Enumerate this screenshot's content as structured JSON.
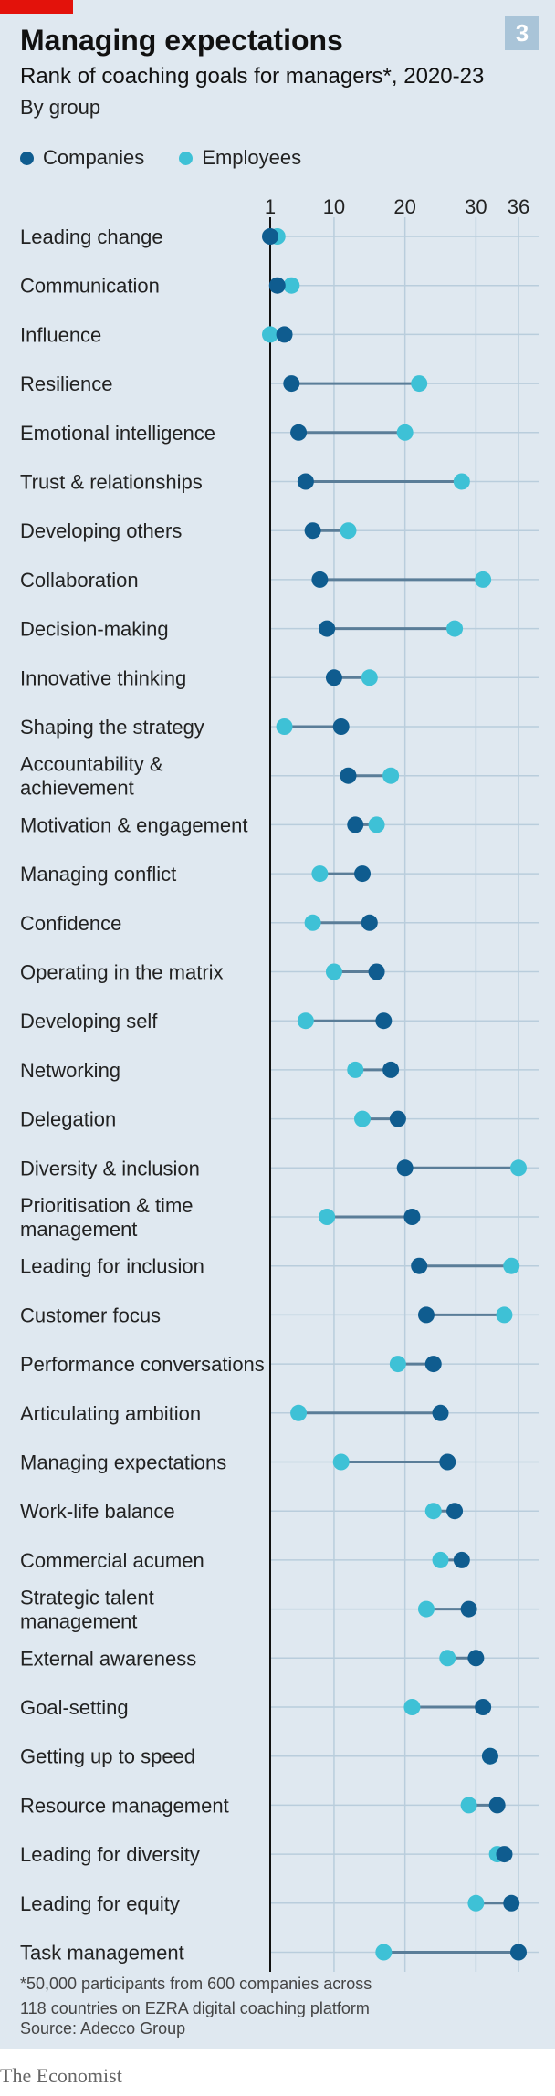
{
  "header": {
    "badge": "3",
    "title": "Managing expectations",
    "subtitle": "Rank of coaching goals for managers*, 2020-23",
    "group_label": "By group"
  },
  "legend": {
    "companies": "Companies",
    "employees": "Employees"
  },
  "colors": {
    "companies": "#0f5c8f",
    "employees": "#3ec1d6",
    "connector": "#5a7d98",
    "grid": "#b9cddc",
    "background": "#dfe8f0"
  },
  "chart_data": {
    "type": "dumbbell",
    "x_axis": {
      "ticks": [
        1,
        10,
        20,
        30,
        36
      ],
      "range": [
        1,
        36
      ]
    },
    "categories": [
      "Leading change",
      "Communication",
      "Influence",
      "Resilience",
      "Emotional intelligence",
      "Trust & relationships",
      "Developing others",
      "Collaboration",
      "Decision-making",
      "Innovative thinking",
      "Shaping the strategy",
      "Accountability & achievement",
      "Motivation & engagement",
      "Managing conflict",
      "Confidence",
      "Operating in the matrix",
      "Developing self",
      "Networking",
      "Delegation",
      "Diversity & inclusion",
      "Prioritisation & time management",
      "Leading for inclusion",
      "Customer focus",
      "Performance conversations",
      "Articulating ambition",
      "Managing expectations",
      "Work-life balance",
      "Commercial acumen",
      "Strategic talent management",
      "External awareness",
      "Goal-setting",
      "Getting up to speed",
      "Resource management",
      "Leading for diversity",
      "Leading for equity",
      "Task management"
    ],
    "series": [
      {
        "name": "Companies",
        "values": [
          1,
          2,
          3,
          4,
          5,
          6,
          7,
          8,
          9,
          10,
          11,
          12,
          13,
          14,
          15,
          16,
          17,
          18,
          19,
          20,
          21,
          22,
          23,
          24,
          25,
          26,
          27,
          28,
          29,
          30,
          31,
          32,
          33,
          34,
          35,
          36
        ]
      },
      {
        "name": "Employees",
        "values": [
          2,
          4,
          1,
          22,
          20,
          28,
          12,
          31,
          27,
          15,
          3,
          18,
          16,
          8,
          7,
          10,
          6,
          13,
          14,
          36,
          9,
          35,
          34,
          19,
          5,
          11,
          24,
          25,
          23,
          26,
          21,
          32,
          29,
          33,
          30,
          17
        ]
      }
    ]
  },
  "footer": {
    "footnote_line1": "*50,000 participants from 600 companies across",
    "footnote_line2": "118 countries on EZRA digital coaching platform",
    "source": "Source: Adecco Group",
    "brand": "The Economist"
  }
}
